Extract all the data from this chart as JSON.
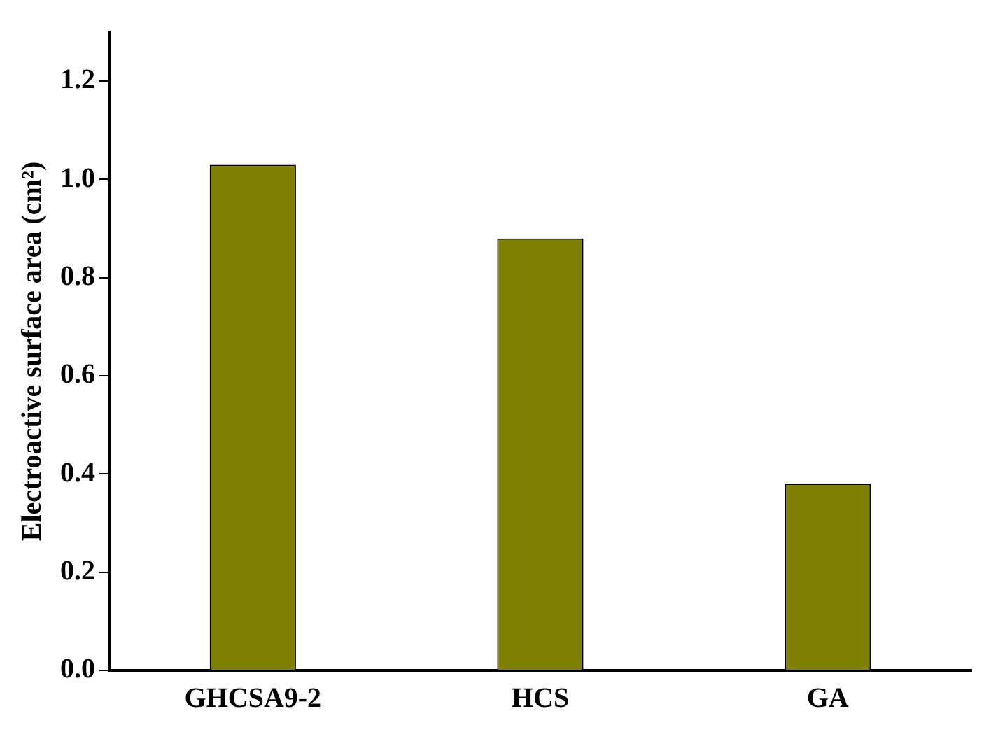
{
  "chart_data": {
    "type": "bar",
    "ylabel": "Electroactive surface area (cm²)",
    "categories": [
      "GHCSA9-2",
      "HCS",
      "GA"
    ],
    "values": [
      1.03,
      0.88,
      0.38
    ],
    "color": "#808000",
    "ylim": [
      0,
      1.3
    ],
    "yticks": [
      {
        "value": 0,
        "label": "0.0"
      },
      0.2,
      0.4,
      0.6,
      0.8,
      {
        "value": 1,
        "label": "1.0"
      },
      1.2
    ],
    "grid": false,
    "legend": false
  }
}
